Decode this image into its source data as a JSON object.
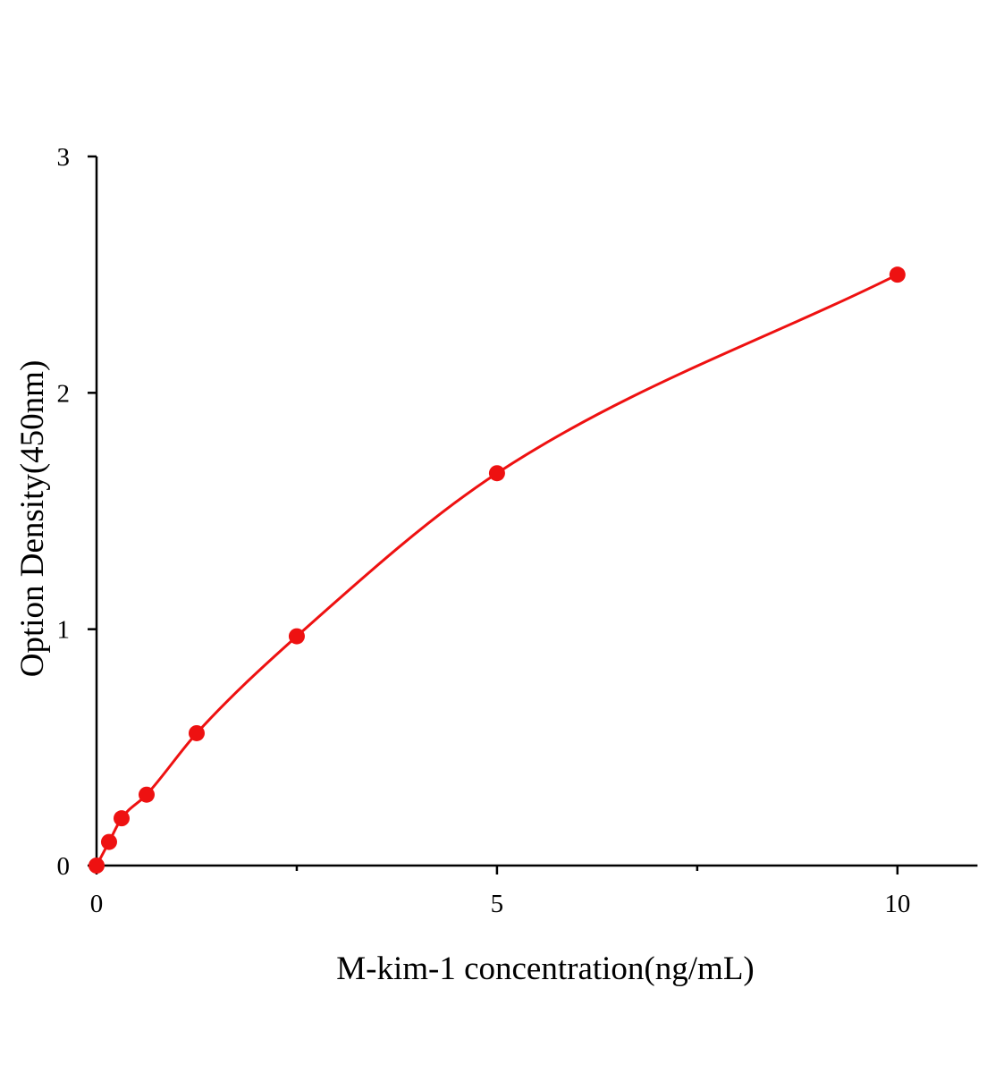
{
  "chart_data": {
    "type": "line",
    "x_label": "M-kim-1 concentration(ng/mL)",
    "y_label": "Option Density(450nm)",
    "x": [
      0,
      0.156,
      0.3125,
      0.625,
      1.25,
      2.5,
      5,
      10
    ],
    "series": [
      {
        "color": "#ee1111",
        "values": [
          0,
          0.1,
          0.2,
          0.3,
          0.56,
          0.97,
          1.66,
          2.5
        ]
      }
    ],
    "smooth": true,
    "markers": true,
    "xlim": [
      0,
      11
    ],
    "xticks": [
      0,
      5,
      10
    ],
    "xminorticks": [
      2.5,
      7.5
    ],
    "ylim": [
      0,
      3
    ],
    "yticks": [
      0,
      1,
      2,
      3
    ]
  }
}
